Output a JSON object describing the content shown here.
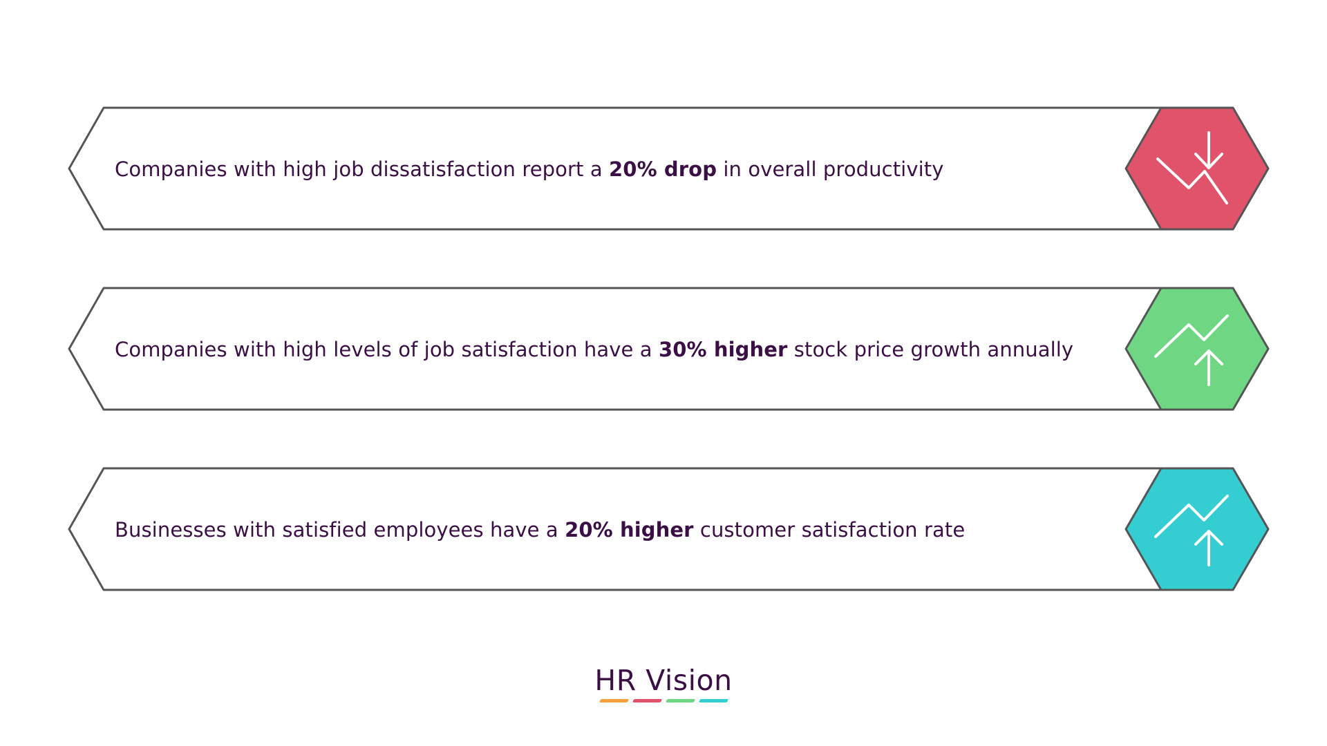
{
  "items": [
    {
      "text_before": "Companies with high job dissatisfaction report a ",
      "highlight": "20% drop",
      "text_after": " in overall productivity",
      "trend": "down",
      "icon": "trend-down-icon",
      "color": "#e0536b"
    },
    {
      "text_before": "Companies with high levels of job satisfaction have a ",
      "highlight": "30% higher",
      "text_after": " stock price growth annually",
      "trend": "up",
      "icon": "trend-up-icon",
      "color": "#6fd783"
    },
    {
      "text_before": "Businesses with satisfied employees have a ",
      "highlight": "20% higher",
      "text_after": " customer satisfaction rate",
      "trend": "up",
      "icon": "trend-up-icon",
      "color": "#33cdd2"
    }
  ],
  "logo": {
    "text": "HR Vision",
    "bar_colors": [
      "#f5a03c",
      "#e0536b",
      "#6fd783",
      "#33cdd2"
    ]
  },
  "colors": {
    "text": "#3b0f45",
    "outline": "#555555"
  }
}
